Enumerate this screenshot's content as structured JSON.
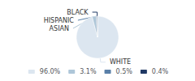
{
  "chart_data": {
    "type": "pie",
    "categories": [
      "WHITE",
      "ASIAN",
      "HISPANIC",
      "BLACK"
    ],
    "values": [
      96.0,
      3.1,
      0.5,
      0.4
    ],
    "value_labels": [
      "96.0%",
      "3.1%",
      "0.5%",
      "0.4%"
    ],
    "colors": [
      "#dce6f0",
      "#aec6d8",
      "#5a80a8",
      "#1f3864"
    ],
    "legend": "bottom"
  }
}
